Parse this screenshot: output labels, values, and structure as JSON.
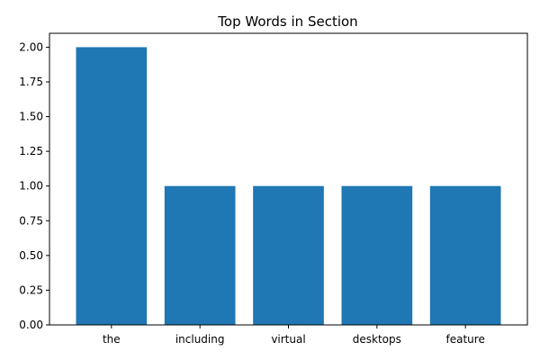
{
  "chart_data": {
    "type": "bar",
    "title": "Top Words in Section",
    "xlabel": "",
    "ylabel": "",
    "categories": [
      "the",
      "including",
      "virtual",
      "desktops",
      "feature"
    ],
    "values": [
      2,
      1,
      1,
      1,
      1
    ],
    "ylim": [
      0,
      2.1
    ],
    "yticks": [
      "0.00",
      "0.25",
      "0.50",
      "0.75",
      "1.00",
      "1.25",
      "1.50",
      "1.75",
      "2.00"
    ],
    "bar_color": "#1f77b4",
    "grid": false,
    "legend": "none"
  }
}
